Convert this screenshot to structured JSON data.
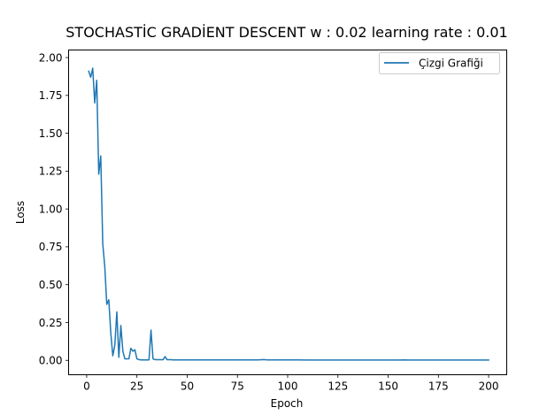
{
  "chart_data": {
    "type": "line",
    "title": "STOCHASTİC GRADİENT DESCENT  w : 0.02  learning rate : 0.01",
    "xlabel": "Epoch",
    "ylabel": "Loss",
    "xlim": [
      -9,
      209
    ],
    "ylim": [
      -0.095,
      2.05
    ],
    "xticks": [
      0,
      25,
      50,
      75,
      100,
      125,
      150,
      175,
      200
    ],
    "yticks": [
      0.0,
      0.25,
      0.5,
      0.75,
      1.0,
      1.25,
      1.5,
      1.75,
      2.0
    ],
    "xtick_labels": [
      "0",
      "25",
      "50",
      "75",
      "100",
      "125",
      "150",
      "175",
      "200"
    ],
    "ytick_labels": [
      "0.00",
      "0.25",
      "0.50",
      "0.75",
      "1.00",
      "1.25",
      "1.50",
      "1.75",
      "2.00"
    ],
    "legend_position": "top-right",
    "grid": false,
    "series": [
      {
        "name": "Çizgi Grafiği",
        "color": "#1f77b4",
        "x": [
          1,
          2,
          3,
          4,
          5,
          6,
          7,
          8,
          9,
          10,
          11,
          12,
          13,
          14,
          15,
          16,
          17,
          18,
          19,
          20,
          21,
          22,
          23,
          24,
          25,
          26,
          27,
          28,
          29,
          30,
          31,
          32,
          33,
          34,
          35,
          36,
          37,
          38,
          39,
          40,
          41,
          42,
          43,
          44,
          45,
          50,
          55,
          60,
          65,
          70,
          75,
          80,
          85,
          88,
          90,
          95,
          100,
          105,
          110,
          115,
          120,
          125,
          130,
          135,
          140,
          145,
          150,
          155,
          158,
          160,
          165,
          170,
          175,
          180,
          185,
          190,
          195,
          200
        ],
        "y": [
          1.91,
          1.87,
          1.93,
          1.7,
          1.85,
          1.23,
          1.35,
          0.77,
          0.62,
          0.37,
          0.4,
          0.18,
          0.03,
          0.1,
          0.32,
          0.02,
          0.23,
          0.06,
          0.01,
          0.01,
          0.01,
          0.08,
          0.06,
          0.07,
          0.01,
          0.005,
          0.003,
          0.003,
          0.003,
          0.003,
          0.003,
          0.2,
          0.01,
          0.005,
          0.004,
          0.004,
          0.004,
          0.004,
          0.025,
          0.004,
          0.004,
          0.004,
          0.003,
          0.003,
          0.003,
          0.003,
          0.003,
          0.003,
          0.003,
          0.003,
          0.003,
          0.003,
          0.003,
          0.005,
          0.003,
          0.003,
          0.003,
          0.003,
          0.002,
          0.002,
          0.002,
          0.002,
          0.002,
          0.002,
          0.002,
          0.002,
          0.002,
          0.002,
          0.003,
          0.002,
          0.002,
          0.002,
          0.002,
          0.002,
          0.002,
          0.002,
          0.002,
          0.002
        ]
      }
    ]
  }
}
